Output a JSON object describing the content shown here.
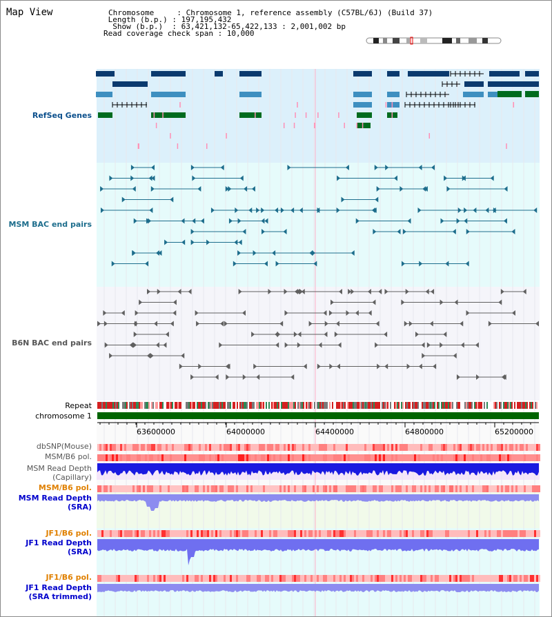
{
  "view": {
    "title": "Map View",
    "info_lines": [
      "Chromosome     : Chromosome 1, reference assembly (C57BL/6J) (Build 37)",
      " Length (b.p.) : 197,195,432",
      "  Show (b.p.)  : 63,421,132-65,422,133 : 2,001,002 bp",
      "Read coverage check span : 10,000"
    ]
  },
  "tracks": {
    "refseq": {
      "label": "RefSeq Genes",
      "color": "#0b4f8c",
      "bg": "#dcf0fb"
    },
    "msm_bac": {
      "label": "MSM BAC end pairs",
      "color": "#1d6d8c",
      "bg": "#e6fbfb"
    },
    "b6n_bac": {
      "label": "B6N BAC end pairs",
      "color": "#555555",
      "bg": "#f4f4fa"
    },
    "repeat": {
      "label": "Repeat"
    },
    "chromosome": {
      "label": "chromosome 1",
      "color": "#006400"
    },
    "dbsnp": {
      "label": "dbSNP(Mouse)"
    },
    "msm_b6_pol": {
      "label": "MSM/B6 pol."
    },
    "msm_depth_cap": {
      "label": "MSM Read Depth",
      "label2": "(Capillary)"
    },
    "msm_b6_pol2": {
      "label": "MSM/B6 pol.",
      "color": "#e08000"
    },
    "msm_depth_sra": {
      "label": "MSM Read Depth",
      "label2": "(SRA)",
      "color": "#0000cc"
    },
    "jf1_b6_pol": {
      "label": "JF1/B6 pol.",
      "color": "#e08000"
    },
    "jf1_depth_sra": {
      "label": "JF1 Read Depth",
      "label2": "(SRA)",
      "color": "#0000cc"
    },
    "jf1_b6_pol2": {
      "label": "JF1/B6 pol.",
      "color": "#e08000"
    },
    "jf1_depth_trim": {
      "label": "JF1 Read Depth",
      "label2": "(SRA trimmed)",
      "color": "#0000cc"
    }
  },
  "axis": {
    "ticks": [
      "63600000",
      "64000000",
      "64400000",
      "64800000",
      "65200000"
    ]
  }
}
